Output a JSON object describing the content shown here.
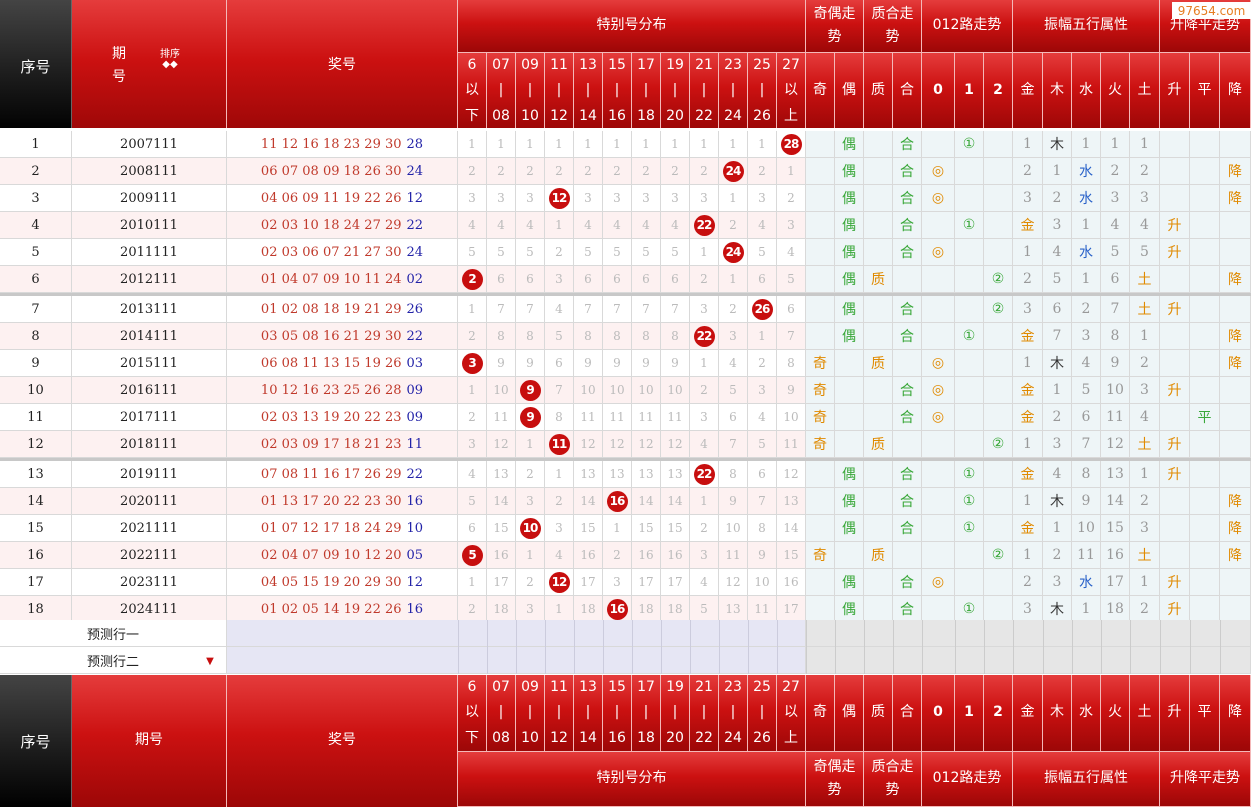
{
  "header": {
    "seq": "序号",
    "period": "期号",
    "period_top": "期\n号",
    "sort_label": "排序",
    "sort_arrows": "◆◆",
    "prize": "奖号",
    "special": "特别号分布",
    "oddeven": "奇偶走势",
    "primecomp": "质合走势",
    "route012": "012路走势",
    "amp5": "振幅五行属性",
    "updown": "升降平走势",
    "buckets": [
      "6\n以\n下",
      "07\n|\n08",
      "09\n|\n10",
      "11\n|\n12",
      "13\n|\n14",
      "15\n|\n16",
      "17\n|\n18",
      "19\n|\n20",
      "21\n|\n22",
      "23\n|\n24",
      "25\n|\n26",
      "27\n以\n上"
    ],
    "sub": [
      "奇",
      "偶",
      "质",
      "合",
      "0",
      "1",
      "2",
      "金",
      "木",
      "水",
      "火",
      "土",
      "升",
      "平",
      "降"
    ]
  },
  "watermark": "97654.com",
  "predict": [
    "预测行一",
    "预测行二"
  ],
  "predict_arrow": "▼",
  "colors": {
    "red_ball": "#c70e0e",
    "accent": "#cc1111",
    "prize_red": "#c0392b",
    "special_blue": "#2323a8",
    "green": "#3aa83a",
    "orange": "#e08a00",
    "blue": "#2a62c9"
  },
  "rows": [
    {
      "no": "1",
      "period": "2007111",
      "nums": "11 12 16 18 23 29 30",
      "sp": "28",
      "buckets": [
        "1",
        "1",
        "1",
        "1",
        "1",
        "1",
        "1",
        "1",
        "1",
        "1",
        "1",
        "28"
      ],
      "hit": 11,
      "ao": [
        "",
        "偶",
        "",
        "合",
        "",
        "①",
        "",
        "1",
        "木",
        "1",
        "1",
        "1",
        "",
        "",
        ""
      ]
    },
    {
      "no": "2",
      "period": "2008111",
      "nums": "06 07 08 09 18 26 30",
      "sp": "24",
      "buckets": [
        "2",
        "2",
        "2",
        "2",
        "2",
        "2",
        "2",
        "2",
        "2",
        "24",
        "2",
        "1"
      ],
      "hit": 9,
      "ao": [
        "",
        "偶",
        "",
        "合",
        "◎",
        "",
        "",
        "2",
        "1",
        "水",
        "2",
        "2",
        "",
        "",
        "降"
      ]
    },
    {
      "no": "3",
      "period": "2009111",
      "nums": "04 06 09 11 19 22 26",
      "sp": "12",
      "buckets": [
        "3",
        "3",
        "3",
        "12",
        "3",
        "3",
        "3",
        "3",
        "3",
        "1",
        "3",
        "2"
      ],
      "hit": 3,
      "ao": [
        "",
        "偶",
        "",
        "合",
        "◎",
        "",
        "",
        "3",
        "2",
        "水",
        "3",
        "3",
        "",
        "",
        "降"
      ]
    },
    {
      "no": "4",
      "period": "2010111",
      "nums": "02 03 10 18 24 27 29",
      "sp": "22",
      "buckets": [
        "4",
        "4",
        "4",
        "1",
        "4",
        "4",
        "4",
        "4",
        "22",
        "2",
        "4",
        "3"
      ],
      "hit": 8,
      "ao": [
        "",
        "偶",
        "",
        "合",
        "",
        "①",
        "",
        "金",
        "3",
        "1",
        "4",
        "4",
        "升",
        "",
        ""
      ]
    },
    {
      "no": "5",
      "period": "2011111",
      "nums": "02 03 06 07 21 27 30",
      "sp": "24",
      "buckets": [
        "5",
        "5",
        "5",
        "2",
        "5",
        "5",
        "5",
        "5",
        "1",
        "24",
        "5",
        "4"
      ],
      "hit": 9,
      "ao": [
        "",
        "偶",
        "",
        "合",
        "◎",
        "",
        "",
        "1",
        "4",
        "水",
        "5",
        "5",
        "升",
        "",
        ""
      ]
    },
    {
      "no": "6",
      "period": "2012111",
      "nums": "01 04 07 09 10 11 24",
      "sp": "02",
      "buckets": [
        "2",
        "6",
        "6",
        "3",
        "6",
        "6",
        "6",
        "6",
        "2",
        "1",
        "6",
        "5"
      ],
      "hit": 0,
      "ao": [
        "",
        "偶",
        "质",
        "",
        "",
        "",
        "②",
        "2",
        "5",
        "1",
        "6",
        "土",
        "",
        "",
        "降"
      ]
    },
    {
      "no": "7",
      "period": "2013111",
      "nums": "01 02 08 18 19 21 29",
      "sp": "26",
      "buckets": [
        "1",
        "7",
        "7",
        "4",
        "7",
        "7",
        "7",
        "7",
        "3",
        "2",
        "26",
        "6"
      ],
      "hit": 10,
      "ao": [
        "",
        "偶",
        "",
        "合",
        "",
        "",
        "②",
        "3",
        "6",
        "2",
        "7",
        "土",
        "升",
        "",
        ""
      ]
    },
    {
      "no": "8",
      "period": "2014111",
      "nums": "03 05 08 16 21 29 30",
      "sp": "22",
      "buckets": [
        "2",
        "8",
        "8",
        "5",
        "8",
        "8",
        "8",
        "8",
        "22",
        "3",
        "1",
        "7"
      ],
      "hit": 8,
      "ao": [
        "",
        "偶",
        "",
        "合",
        "",
        "①",
        "",
        "金",
        "7",
        "3",
        "8",
        "1",
        "",
        "",
        "降"
      ]
    },
    {
      "no": "9",
      "period": "2015111",
      "nums": "06 08 11 13 15 19 26",
      "sp": "03",
      "buckets": [
        "3",
        "9",
        "9",
        "6",
        "9",
        "9",
        "9",
        "9",
        "1",
        "4",
        "2",
        "8"
      ],
      "hit": 0,
      "ao": [
        "奇",
        "",
        "质",
        "",
        "◎",
        "",
        "",
        "1",
        "木",
        "4",
        "9",
        "2",
        "",
        "",
        "降"
      ]
    },
    {
      "no": "10",
      "period": "2016111",
      "nums": "10 12 16 23 25 26 28",
      "sp": "09",
      "buckets": [
        "1",
        "10",
        "9",
        "7",
        "10",
        "10",
        "10",
        "10",
        "2",
        "5",
        "3",
        "9"
      ],
      "hit": 2,
      "ao": [
        "奇",
        "",
        "",
        "合",
        "◎",
        "",
        "",
        "金",
        "1",
        "5",
        "10",
        "3",
        "升",
        "",
        ""
      ]
    },
    {
      "no": "11",
      "period": "2017111",
      "nums": "02 03 13 19 20 22 23",
      "sp": "09",
      "buckets": [
        "2",
        "11",
        "9",
        "8",
        "11",
        "11",
        "11",
        "11",
        "3",
        "6",
        "4",
        "10"
      ],
      "hit": 2,
      "ao": [
        "奇",
        "",
        "",
        "合",
        "◎",
        "",
        "",
        "金",
        "2",
        "6",
        "11",
        "4",
        "",
        "平",
        ""
      ]
    },
    {
      "no": "12",
      "period": "2018111",
      "nums": "02 03 09 17 18 21 23",
      "sp": "11",
      "buckets": [
        "3",
        "12",
        "1",
        "11",
        "12",
        "12",
        "12",
        "12",
        "4",
        "7",
        "5",
        "11"
      ],
      "hit": 3,
      "ao": [
        "奇",
        "",
        "质",
        "",
        "",
        "",
        "②",
        "1",
        "3",
        "7",
        "12",
        "土",
        "升",
        "",
        ""
      ]
    },
    {
      "no": "13",
      "period": "2019111",
      "nums": "07 08 11 16 17 26 29",
      "sp": "22",
      "buckets": [
        "4",
        "13",
        "2",
        "1",
        "13",
        "13",
        "13",
        "13",
        "22",
        "8",
        "6",
        "12"
      ],
      "hit": 8,
      "ao": [
        "",
        "偶",
        "",
        "合",
        "",
        "①",
        "",
        "金",
        "4",
        "8",
        "13",
        "1",
        "升",
        "",
        ""
      ]
    },
    {
      "no": "14",
      "period": "2020111",
      "nums": "01 13 17 20 22 23 30",
      "sp": "16",
      "buckets": [
        "5",
        "14",
        "3",
        "2",
        "14",
        "16",
        "14",
        "14",
        "1",
        "9",
        "7",
        "13"
      ],
      "hit": 5,
      "ao": [
        "",
        "偶",
        "",
        "合",
        "",
        "①",
        "",
        "1",
        "木",
        "9",
        "14",
        "2",
        "",
        "",
        "降"
      ]
    },
    {
      "no": "15",
      "period": "2021111",
      "nums": "01 07 12 17 18 24 29",
      "sp": "10",
      "buckets": [
        "6",
        "15",
        "10",
        "3",
        "15",
        "1",
        "15",
        "15",
        "2",
        "10",
        "8",
        "14"
      ],
      "hit": 2,
      "ao": [
        "",
        "偶",
        "",
        "合",
        "",
        "①",
        "",
        "金",
        "1",
        "10",
        "15",
        "3",
        "",
        "",
        "降"
      ]
    },
    {
      "no": "16",
      "period": "2022111",
      "nums": "02 04 07 09 10 12 20",
      "sp": "05",
      "buckets": [
        "5",
        "16",
        "1",
        "4",
        "16",
        "2",
        "16",
        "16",
        "3",
        "11",
        "9",
        "15"
      ],
      "hit": 0,
      "ao": [
        "奇",
        "",
        "质",
        "",
        "",
        "",
        "②",
        "1",
        "2",
        "11",
        "16",
        "土",
        "",
        "",
        "降"
      ]
    },
    {
      "no": "17",
      "period": "2023111",
      "nums": "04 05 15 19 20 29 30",
      "sp": "12",
      "buckets": [
        "1",
        "17",
        "2",
        "12",
        "17",
        "3",
        "17",
        "17",
        "4",
        "12",
        "10",
        "16"
      ],
      "hit": 3,
      "ao": [
        "",
        "偶",
        "",
        "合",
        "◎",
        "",
        "",
        "2",
        "3",
        "水",
        "17",
        "1",
        "升",
        "",
        ""
      ]
    },
    {
      "no": "18",
      "period": "2024111",
      "nums": "01 02 05 14 19 22 26",
      "sp": "16",
      "buckets": [
        "2",
        "18",
        "3",
        "1",
        "18",
        "16",
        "18",
        "18",
        "5",
        "13",
        "11",
        "17"
      ],
      "hit": 5,
      "ao": [
        "",
        "偶",
        "",
        "合",
        "",
        "①",
        "",
        "3",
        "木",
        "1",
        "18",
        "2",
        "升",
        "",
        ""
      ]
    }
  ]
}
